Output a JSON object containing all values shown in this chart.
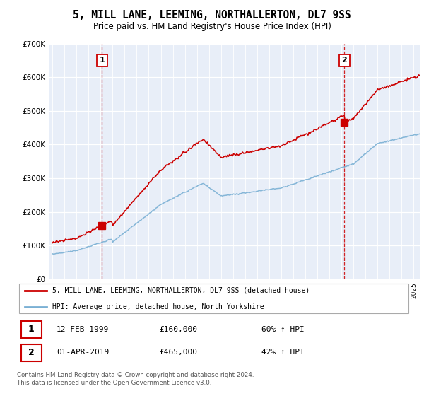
{
  "title": "5, MILL LANE, LEEMING, NORTHALLERTON, DL7 9SS",
  "subtitle": "Price paid vs. HM Land Registry's House Price Index (HPI)",
  "sale1_date": "12-FEB-1999",
  "sale1_price": 160000,
  "sale1_label": "£160,000",
  "sale1_hpi": "60% ↑ HPI",
  "sale1_x": 1999.12,
  "sale2_date": "01-APR-2019",
  "sale2_price": 465000,
  "sale2_label": "£465,000",
  "sale2_hpi": "42% ↑ HPI",
  "sale2_x": 2019.25,
  "legend1": "5, MILL LANE, LEEMING, NORTHALLERTON, DL7 9SS (detached house)",
  "legend2": "HPI: Average price, detached house, North Yorkshire",
  "footnote": "Contains HM Land Registry data © Crown copyright and database right 2024.\nThis data is licensed under the Open Government Licence v3.0.",
  "red_color": "#cc0000",
  "blue_color": "#7ab0d4",
  "grid_color": "#d0d8e8",
  "bg_color": "#e8eef8",
  "ylim_max": 700000,
  "xlim_start": 1994.7,
  "xlim_end": 2025.5
}
